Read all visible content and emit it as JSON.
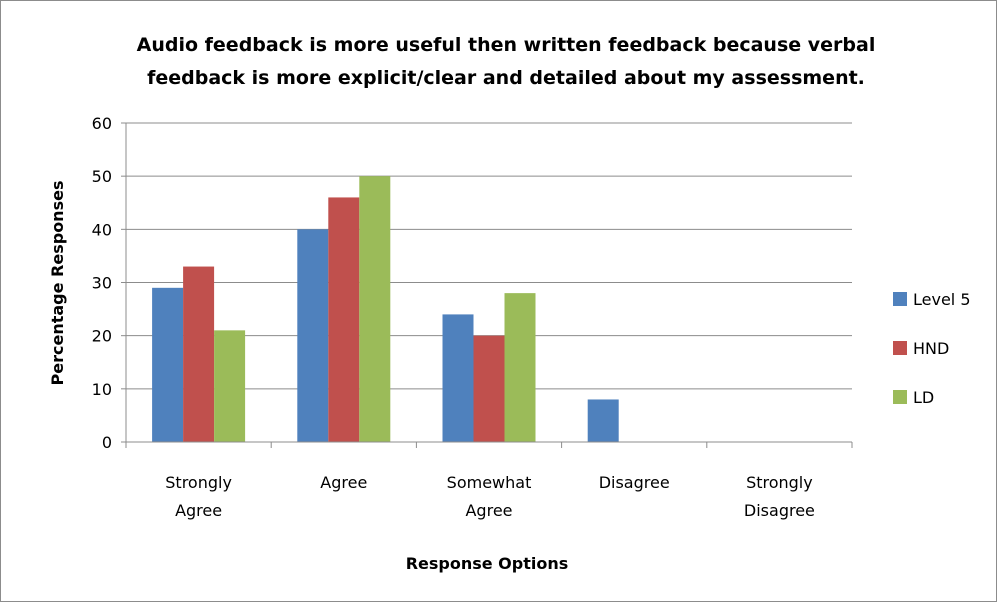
{
  "chart_data": {
    "type": "bar",
    "title_lines": [
      "Audio feedback is more useful then written feedback because verbal",
      "feedback is more explicit/clear and detailed about my assessment."
    ],
    "xlabel": "Response Options",
    "ylabel": "Percentage Responses",
    "ylim": [
      0,
      60
    ],
    "yticks": [
      "0",
      "10",
      "20",
      "30",
      "40",
      "50",
      "60"
    ],
    "grid": true,
    "legend_position": "right",
    "categories": [
      [
        "Strongly",
        "Agree"
      ],
      [
        "Agree"
      ],
      [
        "Somewhat",
        "Agree"
      ],
      [
        "Disagree"
      ],
      [
        "Strongly",
        "Disagree"
      ]
    ],
    "series": [
      {
        "name": "Level 5",
        "color": "#4F81BD",
        "values": [
          29,
          40,
          24,
          8,
          0
        ]
      },
      {
        "name": "HND",
        "color": "#C0504D",
        "values": [
          33,
          46,
          20,
          0,
          0
        ]
      },
      {
        "name": "LD",
        "color": "#9BBB59",
        "values": [
          21,
          50,
          28,
          0,
          0
        ]
      }
    ]
  }
}
